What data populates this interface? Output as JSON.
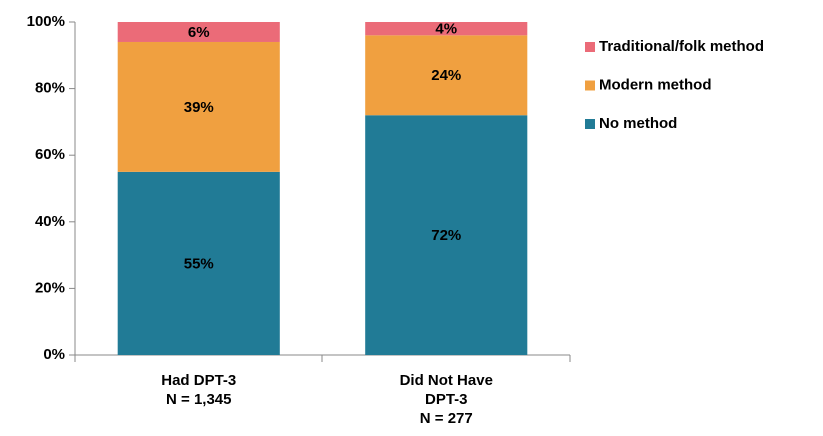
{
  "chart_data": {
    "type": "stacked_bar",
    "categories": [
      [
        "Had DPT-3",
        "N = 1,345"
      ],
      [
        "Did Not Have",
        "DPT-3",
        "N = 277"
      ]
    ],
    "series": [
      {
        "name": "No method",
        "color": "#217b96",
        "values": [
          55,
          72
        ],
        "value_labels": [
          "55%",
          "72%"
        ]
      },
      {
        "name": "Modern method",
        "color": "#f0a040",
        "values": [
          39,
          24
        ],
        "value_labels": [
          "39%",
          "24%"
        ]
      },
      {
        "name": "Traditional/folk method",
        "color": "#eb6b78",
        "values": [
          6,
          4
        ],
        "value_labels": [
          "6%",
          "4%"
        ]
      }
    ],
    "ylim": [
      0,
      100
    ],
    "yticks": [
      {
        "value": 0,
        "label": "0%"
      },
      {
        "value": 20,
        "label": "20%"
      },
      {
        "value": 40,
        "label": "40%"
      },
      {
        "value": 60,
        "label": "60%"
      },
      {
        "value": 80,
        "label": "80%"
      },
      {
        "value": 100,
        "label": "100%"
      }
    ],
    "legend": "right"
  }
}
